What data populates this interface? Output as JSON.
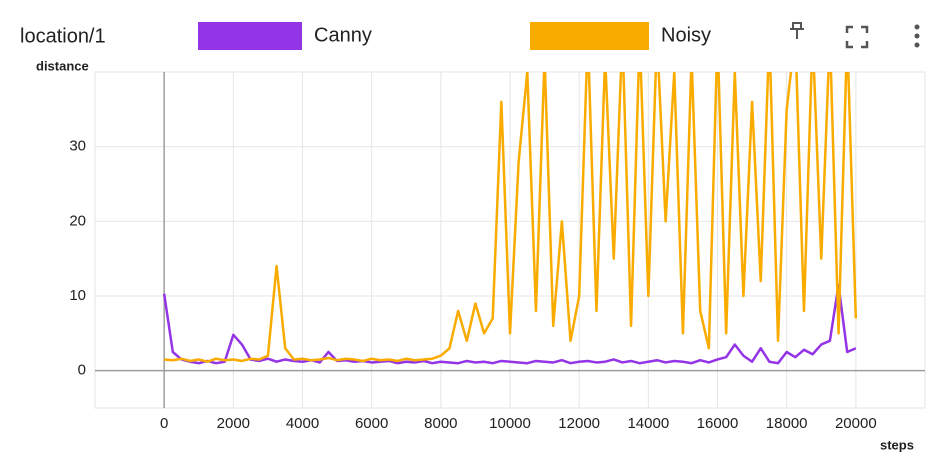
{
  "chart_data": {
    "type": "line",
    "title": "location/1",
    "ylabel": "distance",
    "xlabel": "steps",
    "x": [
      0,
      250,
      500,
      750,
      1000,
      1250,
      1500,
      1750,
      2000,
      2250,
      2500,
      2750,
      3000,
      3250,
      3500,
      3750,
      4000,
      4250,
      4500,
      4750,
      5000,
      5250,
      5500,
      5750,
      6000,
      6250,
      6500,
      6750,
      7000,
      7250,
      7500,
      7750,
      8000,
      8250,
      8500,
      8750,
      9000,
      9250,
      9500,
      9750,
      10000,
      10250,
      10500,
      10750,
      11000,
      11250,
      11500,
      11750,
      12000,
      12250,
      12500,
      12750,
      13000,
      13250,
      13500,
      13750,
      14000,
      14250,
      14500,
      14750,
      15000,
      15250,
      15500,
      15750,
      16000,
      16250,
      16500,
      16750,
      17000,
      17250,
      17500,
      17750,
      18000,
      18250,
      18500,
      18750,
      19000,
      19250,
      19500,
      19750,
      20000
    ],
    "series": [
      {
        "name": "Canny",
        "color": "#9334e6",
        "values": [
          10.3,
          2.5,
          1.5,
          1.2,
          1.0,
          1.3,
          1.0,
          1.2,
          4.8,
          3.5,
          1.5,
          1.3,
          1.6,
          1.2,
          1.5,
          1.3,
          1.2,
          1.4,
          1.1,
          2.5,
          1.3,
          1.4,
          1.2,
          1.3,
          1.1,
          1.2,
          1.3,
          1.0,
          1.2,
          1.1,
          1.3,
          1.0,
          1.2,
          1.1,
          1.0,
          1.3,
          1.1,
          1.2,
          1.0,
          1.3,
          1.2,
          1.1,
          1.0,
          1.3,
          1.2,
          1.1,
          1.4,
          1.0,
          1.2,
          1.3,
          1.1,
          1.2,
          1.5,
          1.1,
          1.3,
          1.0,
          1.2,
          1.4,
          1.1,
          1.3,
          1.2,
          1.0,
          1.4,
          1.1,
          1.5,
          1.8,
          3.5,
          2.0,
          1.2,
          3.0,
          1.2,
          1.0,
          2.5,
          1.8,
          2.8,
          2.2,
          3.5,
          4.0,
          11.5,
          2.5,
          3.0
        ]
      },
      {
        "name": "Noisy",
        "color": "#f9ab00",
        "values": [
          1.5,
          1.4,
          1.6,
          1.3,
          1.5,
          1.2,
          1.6,
          1.4,
          1.5,
          1.3,
          1.6,
          1.5,
          2,
          14,
          3,
          1.5,
          1.6,
          1.4,
          1.5,
          1.7,
          1.4,
          1.6,
          1.5,
          1.3,
          1.6,
          1.4,
          1.5,
          1.3,
          1.6,
          1.4,
          1.5,
          1.6,
          2,
          3,
          8,
          4,
          9,
          5,
          7,
          36,
          5,
          28,
          40,
          8,
          42,
          6,
          20,
          4,
          10,
          45,
          8,
          42,
          15,
          45,
          6,
          45,
          10,
          45,
          20,
          40,
          5,
          42,
          8,
          3,
          45,
          5,
          40,
          10,
          36,
          12,
          45,
          4,
          35,
          45,
          8,
          45,
          15,
          45,
          5,
          45,
          7
        ]
      }
    ],
    "xlim": [
      -2000,
      22000
    ],
    "xticks": [
      0,
      2000,
      4000,
      6000,
      8000,
      10000,
      12000,
      14000,
      16000,
      18000,
      20000
    ],
    "ylim": [
      -5,
      40
    ],
    "yticks": [
      0,
      10,
      20,
      30
    ],
    "grid": true
  }
}
